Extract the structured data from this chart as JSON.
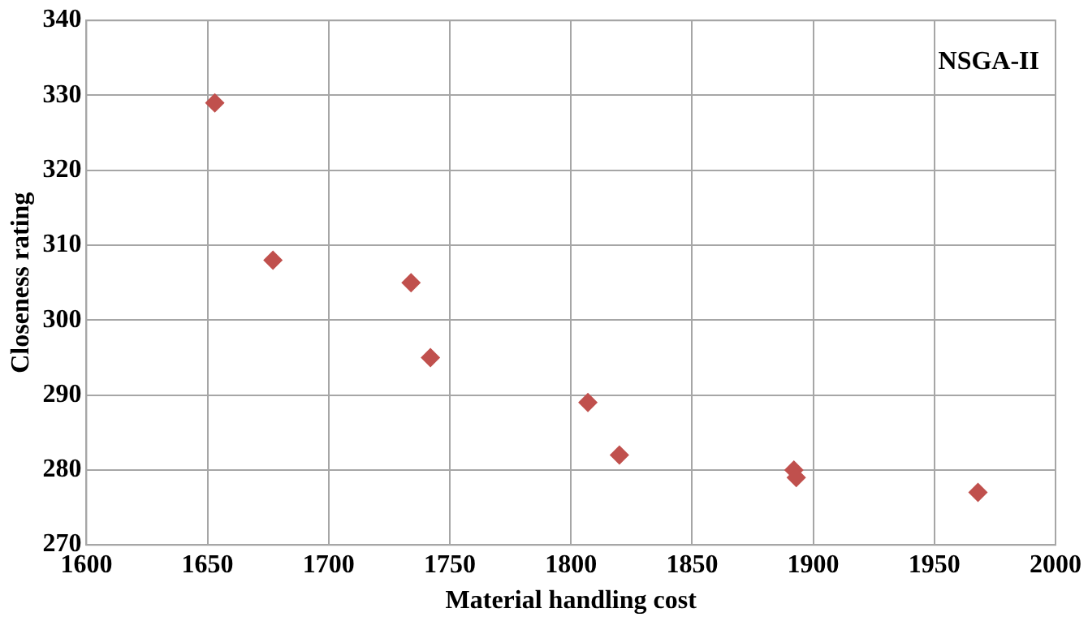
{
  "chart_data": {
    "type": "scatter",
    "xlabel": "Material handling cost",
    "ylabel": "Closeness rating",
    "annotations": [
      "NSGA-II"
    ],
    "x": [
      1653,
      1677,
      1734,
      1742,
      1807,
      1820,
      1892,
      1893,
      1968
    ],
    "series": [
      {
        "color": "#c0504d",
        "values": [
          329,
          308,
          305,
          295,
          289,
          282,
          280,
          279,
          277
        ]
      }
    ],
    "xlim": [
      1600,
      2000
    ],
    "xticks": [
      1600,
      1650,
      1700,
      1750,
      1800,
      1850,
      1900,
      1950,
      2000
    ],
    "ylim": [
      270,
      340
    ],
    "yticks": [
      270,
      280,
      290,
      300,
      310,
      320,
      330,
      340
    ],
    "grid": true,
    "legend": false,
    "marker": "diamond"
  }
}
